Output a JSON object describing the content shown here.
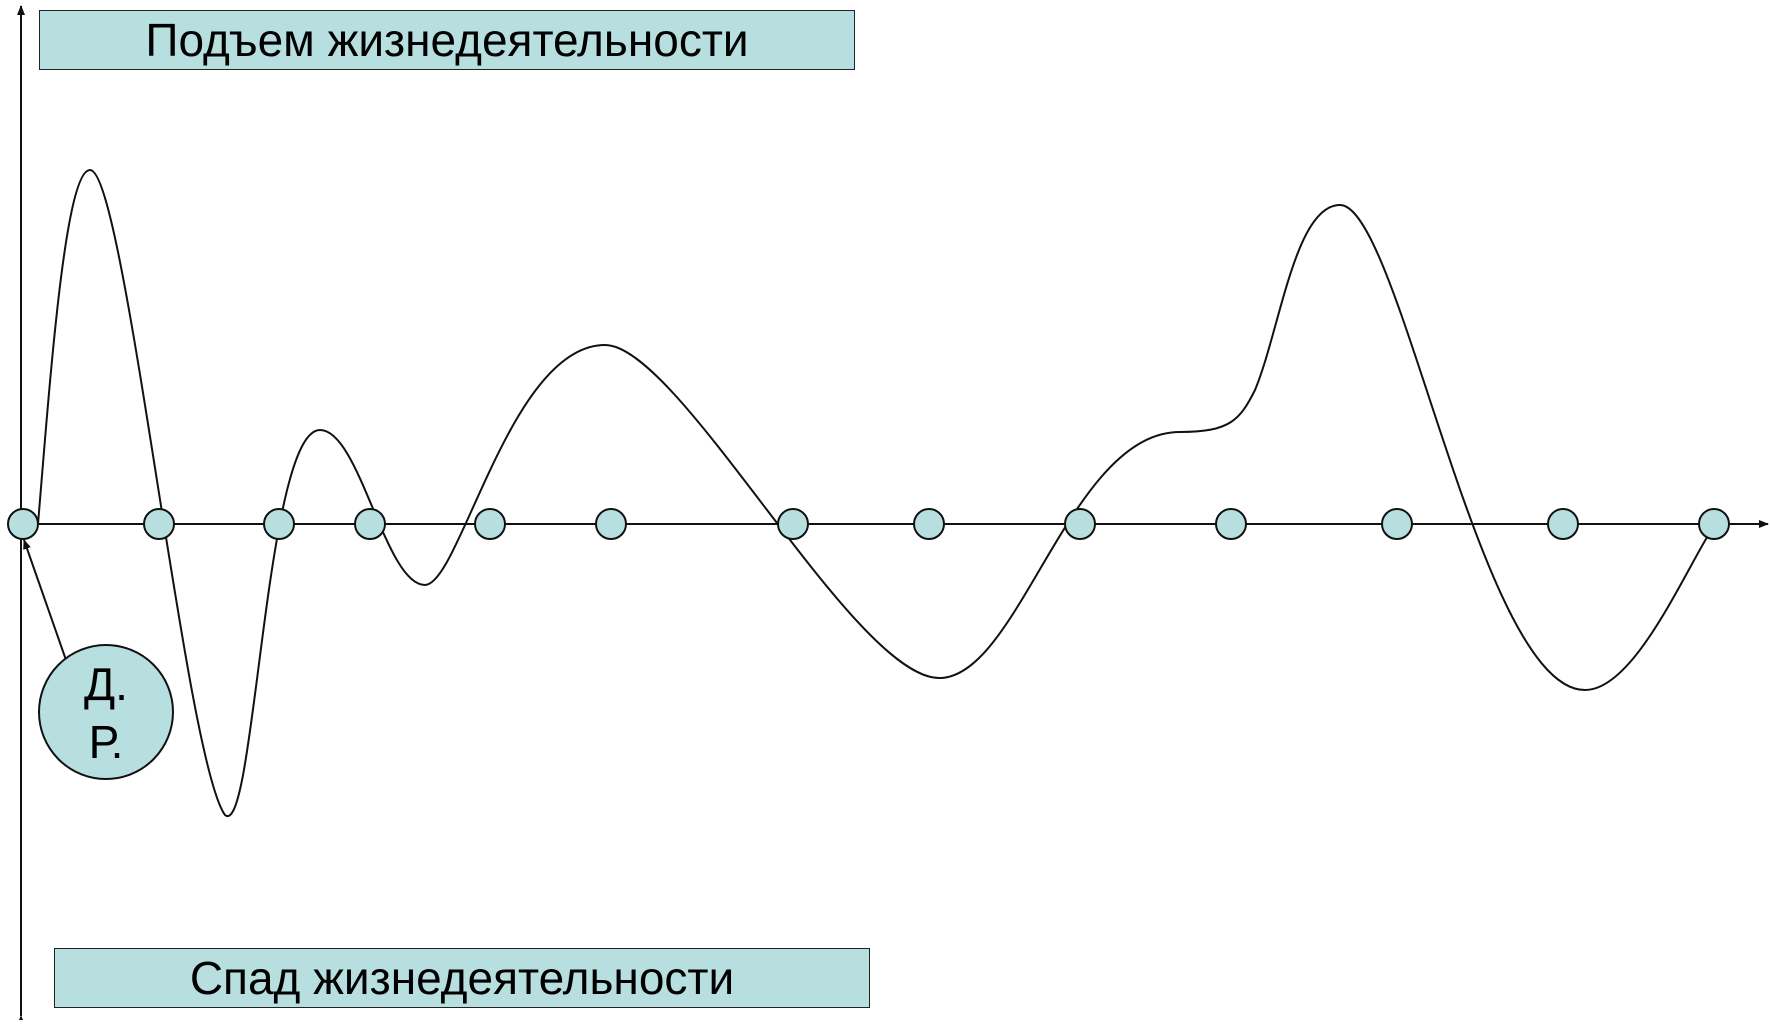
{
  "labels": {
    "top": "Подъем жизнедеятельности",
    "bottom": "Спад жизнедеятельности"
  },
  "callout": {
    "line1": "Д.",
    "line2": "Р."
  },
  "colors": {
    "box_fill": "#b8dfe0",
    "stroke": "#111111"
  }
}
